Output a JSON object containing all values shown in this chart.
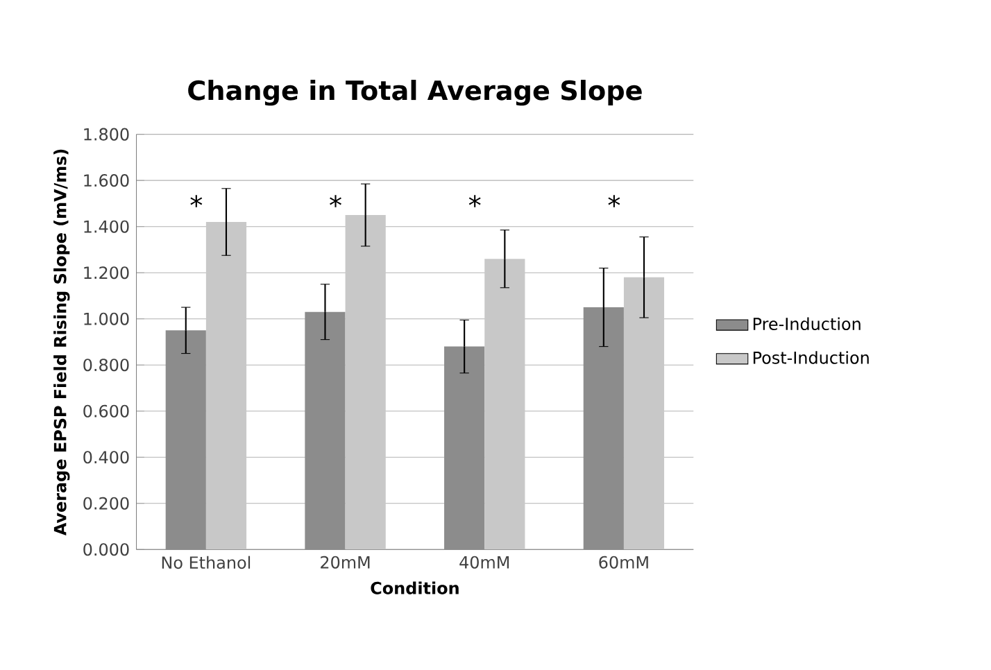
{
  "chart_data": {
    "type": "bar",
    "title": "Change in Total Average Slope",
    "xlabel": "Condition",
    "ylabel": "Average EPSP Field Rising Slope (mV/ms)",
    "categories": [
      "No Ethanol",
      "20mM",
      "40mM",
      "60mM"
    ],
    "series": [
      {
        "name": "Pre-Induction",
        "color": "#8c8c8c",
        "values": [
          0.95,
          1.03,
          0.88,
          1.05
        ],
        "errors": [
          0.1,
          0.12,
          0.115,
          0.17
        ]
      },
      {
        "name": "Post-Induction",
        "color": "#c8c8c8",
        "values": [
          1.42,
          1.45,
          1.26,
          1.18
        ],
        "errors": [
          0.145,
          0.135,
          0.125,
          0.175
        ]
      }
    ],
    "ylim": [
      0,
      1.8
    ],
    "yticks": [
      {
        "value": 0,
        "label": "0.000"
      },
      {
        "value": 0.2,
        "label": "0.200"
      },
      {
        "value": 0.4,
        "label": "0.400"
      },
      {
        "value": 0.6,
        "label": "0.600"
      },
      {
        "value": 0.8,
        "label": "0.800"
      },
      {
        "value": 1.0,
        "label": "1.000"
      },
      {
        "value": 1.2,
        "label": "1.200"
      },
      {
        "value": 1.4,
        "label": "1.400"
      },
      {
        "value": 1.6,
        "label": "1.600"
      },
      {
        "value": 1.8,
        "label": "1.800"
      }
    ],
    "grid": "y",
    "legend": "right",
    "annotations": [
      "*",
      "*",
      "*",
      "*"
    ]
  }
}
